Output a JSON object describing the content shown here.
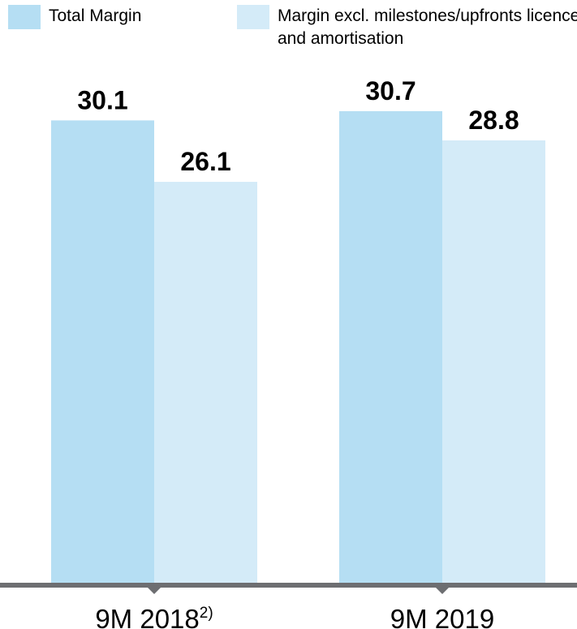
{
  "chart_data": {
    "type": "bar",
    "categories": [
      "9M 2018",
      "9M 2019"
    ],
    "category_superscripts": [
      "2)",
      ""
    ],
    "series": [
      {
        "name": "Total Margin",
        "values": [
          30.1,
          30.7
        ],
        "color": "#b5def3"
      },
      {
        "name": "Margin excl. milestones/upfronts licences and amortisation",
        "values": [
          26.1,
          28.8
        ],
        "color": "#d4ebf8"
      }
    ],
    "data_labels": [
      [
        "30.1",
        "30.7"
      ],
      [
        "26.1",
        "28.8"
      ]
    ],
    "ylim": [
      0,
      30.7
    ],
    "axis_color": "#6d6e71",
    "grid": false,
    "legend_position": "top"
  }
}
